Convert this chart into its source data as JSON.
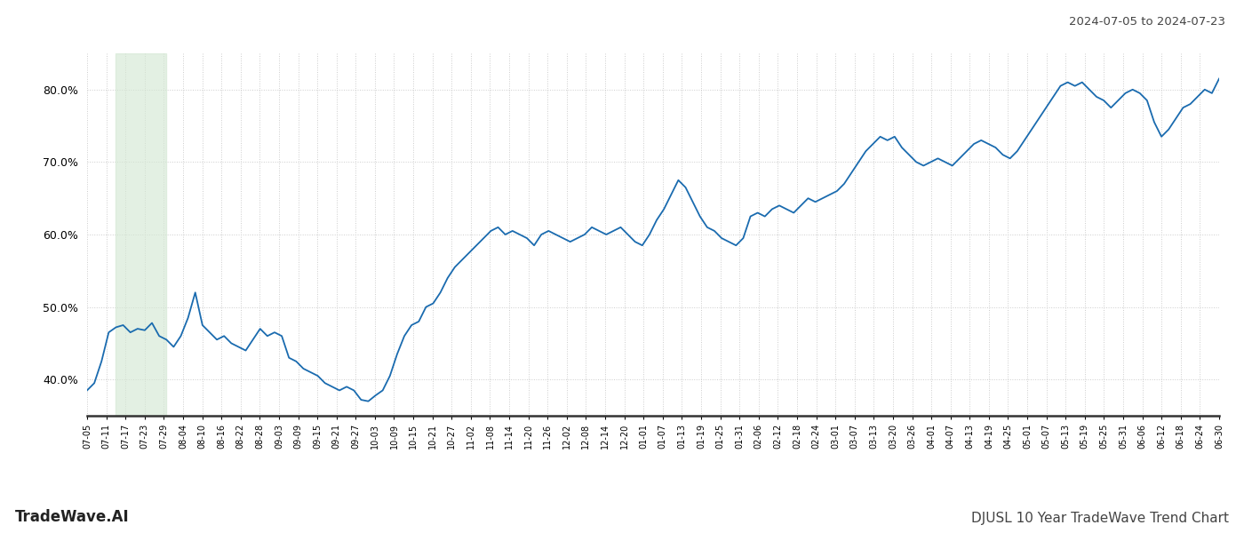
{
  "title_top_right": "2024-07-05 to 2024-07-23",
  "title_bottom_left": "TradeWave.AI",
  "title_bottom_right": "DJUSL 10 Year TradeWave Trend Chart",
  "line_color": "#1a6baf",
  "line_width": 1.3,
  "highlight_xstart": 4,
  "highlight_xend": 11,
  "highlight_color": "#d5e8d4",
  "highlight_alpha": 0.65,
  "ylim": [
    35,
    85
  ],
  "yticks": [
    40.0,
    50.0,
    60.0,
    70.0,
    80.0
  ],
  "background_color": "#ffffff",
  "grid_color": "#cccccc",
  "x_labels": [
    "07-05",
    "07-11",
    "07-17",
    "07-23",
    "07-29",
    "08-04",
    "08-10",
    "08-16",
    "08-22",
    "08-28",
    "09-03",
    "09-09",
    "09-15",
    "09-21",
    "09-27",
    "10-03",
    "10-09",
    "10-15",
    "10-21",
    "10-27",
    "11-02",
    "11-08",
    "11-14",
    "11-20",
    "11-26",
    "12-02",
    "12-08",
    "12-14",
    "12-20",
    "01-01",
    "01-07",
    "01-13",
    "01-19",
    "01-25",
    "01-31",
    "02-06",
    "02-12",
    "02-18",
    "02-24",
    "03-01",
    "03-07",
    "03-13",
    "03-20",
    "03-26",
    "04-01",
    "04-07",
    "04-13",
    "04-19",
    "04-25",
    "05-01",
    "05-07",
    "05-13",
    "05-19",
    "05-25",
    "05-31",
    "06-06",
    "06-12",
    "06-18",
    "06-24",
    "06-30"
  ],
  "values": [
    38.5,
    39.5,
    42.5,
    46.5,
    47.2,
    47.5,
    46.5,
    47.0,
    46.8,
    47.8,
    46.0,
    45.5,
    44.5,
    46.0,
    48.5,
    52.0,
    47.5,
    46.5,
    45.5,
    46.0,
    45.0,
    44.5,
    44.0,
    45.5,
    47.0,
    46.0,
    46.5,
    46.0,
    43.0,
    42.5,
    41.5,
    41.0,
    40.5,
    39.5,
    39.0,
    38.5,
    39.0,
    38.5,
    37.2,
    37.0,
    37.8,
    38.5,
    40.5,
    43.5,
    46.0,
    47.5,
    48.0,
    50.0,
    50.5,
    52.0,
    54.0,
    55.5,
    56.5,
    57.5,
    58.5,
    59.5,
    60.5,
    61.0,
    60.0,
    60.5,
    60.0,
    59.5,
    58.5,
    60.0,
    60.5,
    60.0,
    59.5,
    59.0,
    59.5,
    60.0,
    61.0,
    60.5,
    60.0,
    60.5,
    61.0,
    60.0,
    59.0,
    58.5,
    60.0,
    62.0,
    63.5,
    65.5,
    67.5,
    66.5,
    64.5,
    62.5,
    61.0,
    60.5,
    59.5,
    59.0,
    58.5,
    59.5,
    62.5,
    63.0,
    62.5,
    63.5,
    64.0,
    63.5,
    63.0,
    64.0,
    65.0,
    64.5,
    65.0,
    65.5,
    66.0,
    67.0,
    68.5,
    70.0,
    71.5,
    72.5,
    73.5,
    73.0,
    73.5,
    72.0,
    71.0,
    70.0,
    69.5,
    70.0,
    70.5,
    70.0,
    69.5,
    70.5,
    71.5,
    72.5,
    73.0,
    72.5,
    72.0,
    71.0,
    70.5,
    71.5,
    73.0,
    74.5,
    76.0,
    77.5,
    79.0,
    80.5,
    81.0,
    80.5,
    81.0,
    80.0,
    79.0,
    78.5,
    77.5,
    78.5,
    79.5,
    80.0,
    79.5,
    78.5,
    75.5,
    73.5,
    74.5,
    76.0,
    77.5,
    78.0,
    79.0,
    80.0,
    79.5,
    81.5
  ]
}
